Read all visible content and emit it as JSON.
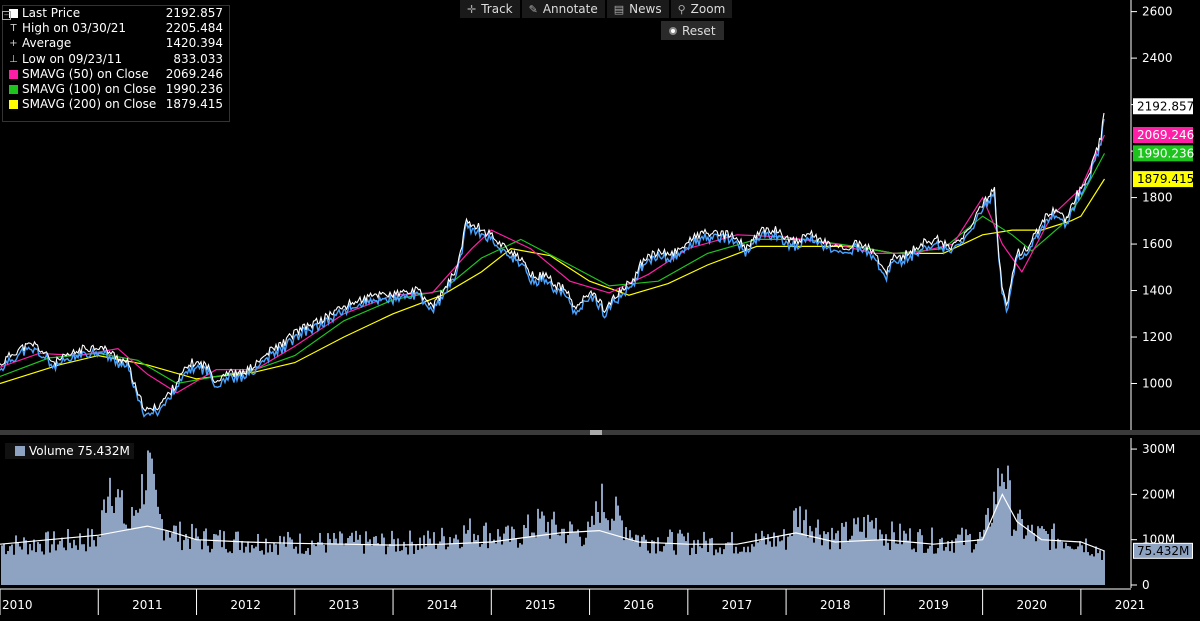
{
  "toolbar": {
    "track": "Track",
    "annotate": "Annotate",
    "news": "News",
    "zoom": "Zoom",
    "reset": "Reset"
  },
  "legend": [
    {
      "label": "Last Price",
      "value": "2192.857",
      "color": "#ffffff",
      "kind": "box"
    },
    {
      "label": "High on 03/30/21",
      "value": "2205.484",
      "color": "#bbbbbb",
      "kind": "glyph"
    },
    {
      "label": "Average",
      "value": "1420.394",
      "color": "#bbbbbb",
      "kind": "glyph"
    },
    {
      "label": "Low on 09/23/11",
      "value": "833.033",
      "color": "#bbbbbb",
      "kind": "glyph"
    },
    {
      "label": "SMAVG (50)  on Close",
      "value": "2069.246",
      "color": "#ff1fa6",
      "kind": "box"
    },
    {
      "label": "SMAVG (100)  on Close",
      "value": "1990.236",
      "color": "#1ec31e",
      "kind": "box"
    },
    {
      "label": "SMAVG (200)  on Close",
      "value": "1879.415",
      "color": "#ffff00",
      "kind": "box"
    }
  ],
  "volume_legend": {
    "label": "Volume",
    "value": "75.432M"
  },
  "colors": {
    "price": "#ffffff",
    "price_alt": "#4aa3ff",
    "sma50": "#ff1fa6",
    "sma100": "#1ec31e",
    "sma200": "#ffff00",
    "volume": "#8ea3c2",
    "volume_ma": "#ffffff",
    "axis_text": "#ffffff"
  },
  "chart_data": [
    {
      "type": "line",
      "title": "",
      "ylim": [
        800,
        2650
      ],
      "yticks": [
        "1000",
        "1200",
        "1400",
        "1600",
        "1800",
        "2000",
        "2200",
        "2400",
        "2600"
      ],
      "xlim": [
        2010.0,
        2021.5
      ],
      "series": [
        {
          "name": "Last Price",
          "x": [
            2010.0,
            2010.1,
            2010.2,
            2010.35,
            2010.45,
            2010.55,
            2010.7,
            2010.85,
            2011.0,
            2011.1,
            2011.2,
            2011.3,
            2011.4,
            2011.5,
            2011.6,
            2011.73,
            2011.85,
            2011.95,
            2012.1,
            2012.2,
            2012.3,
            2012.45,
            2012.6,
            2012.75,
            2012.9,
            2013.0,
            2013.15,
            2013.3,
            2013.4,
            2013.5,
            2013.6,
            2013.75,
            2013.9,
            2014.0,
            2014.1,
            2014.25,
            2014.4,
            2014.55,
            2014.65,
            2014.75,
            2014.85,
            2014.95,
            2015.0,
            2015.1,
            2015.2,
            2015.3,
            2015.45,
            2015.55,
            2015.65,
            2015.75,
            2015.85,
            2015.95,
            2016.05,
            2016.15,
            2016.3,
            2016.45,
            2016.55,
            2016.7,
            2016.85,
            2017.0,
            2017.15,
            2017.3,
            2017.45,
            2017.6,
            2017.75,
            2017.9,
            2018.0,
            2018.1,
            2018.25,
            2018.4,
            2018.55,
            2018.7,
            2018.8,
            2018.9,
            2019.0,
            2019.1,
            2019.25,
            2019.4,
            2019.55,
            2019.65,
            2019.8,
            2019.95,
            2020.05,
            2020.12,
            2020.17,
            2020.2,
            2020.25,
            2020.35,
            2020.45,
            2020.55,
            2020.65,
            2020.75,
            2020.85,
            2020.95,
            2021.05,
            2021.12,
            2021.2,
            2021.24
          ],
          "values": [
            1080,
            1120,
            1150,
            1170,
            1130,
            1090,
            1120,
            1150,
            1160,
            1140,
            1110,
            1090,
            950,
            880,
            900,
            960,
            1040,
            1090,
            1080,
            1010,
            1050,
            1040,
            1080,
            1140,
            1180,
            1220,
            1250,
            1280,
            1310,
            1330,
            1350,
            1370,
            1390,
            1380,
            1390,
            1400,
            1330,
            1420,
            1500,
            1700,
            1680,
            1650,
            1640,
            1600,
            1570,
            1530,
            1450,
            1480,
            1420,
            1410,
            1320,
            1370,
            1390,
            1320,
            1390,
            1450,
            1540,
            1560,
            1560,
            1610,
            1650,
            1640,
            1640,
            1580,
            1660,
            1660,
            1630,
            1610,
            1640,
            1610,
            1580,
            1600,
            1590,
            1570,
            1470,
            1540,
            1560,
            1610,
            1620,
            1590,
            1620,
            1730,
            1800,
            1850,
            1520,
            1420,
            1340,
            1560,
            1580,
            1650,
            1720,
            1760,
            1700,
            1810,
            1860,
            1950,
            2050,
            2190
          ]
        },
        {
          "name": "SMAVG (50)  on Close",
          "x": [
            2010.0,
            2010.4,
            2010.8,
            2011.2,
            2011.5,
            2011.8,
            2012.2,
            2012.6,
            2013.0,
            2013.5,
            2014.0,
            2014.4,
            2014.8,
            2015.0,
            2015.4,
            2015.8,
            2016.2,
            2016.6,
            2017.0,
            2017.5,
            2018.0,
            2018.5,
            2018.9,
            2019.3,
            2019.7,
            2020.0,
            2020.2,
            2020.4,
            2020.7,
            2021.0,
            2021.24
          ],
          "values": [
            1070,
            1130,
            1120,
            1150,
            1040,
            960,
            1060,
            1060,
            1160,
            1300,
            1380,
            1390,
            1580,
            1660,
            1580,
            1440,
            1390,
            1470,
            1580,
            1640,
            1630,
            1600,
            1560,
            1560,
            1600,
            1800,
            1600,
            1480,
            1720,
            1840,
            2069
          ]
        },
        {
          "name": "SMAVG (100)  on Close",
          "x": [
            2010.0,
            2010.5,
            2011.0,
            2011.4,
            2011.8,
            2012.2,
            2012.6,
            2013.0,
            2013.5,
            2014.0,
            2014.5,
            2014.9,
            2015.3,
            2015.8,
            2016.2,
            2016.7,
            2017.2,
            2017.7,
            2018.2,
            2018.7,
            2019.1,
            2019.6,
            2020.0,
            2020.3,
            2020.5,
            2020.8,
            2021.0,
            2021.24
          ],
          "values": [
            1030,
            1110,
            1130,
            1100,
            1000,
            1030,
            1060,
            1120,
            1270,
            1360,
            1400,
            1540,
            1620,
            1510,
            1420,
            1440,
            1560,
            1620,
            1620,
            1590,
            1560,
            1580,
            1720,
            1640,
            1570,
            1680,
            1800,
            1990
          ]
        },
        {
          "name": "SMAVG (200)  on Close",
          "x": [
            2010.0,
            2010.6,
            2011.0,
            2011.5,
            2012.0,
            2012.6,
            2013.0,
            2013.5,
            2014.0,
            2014.5,
            2014.9,
            2015.2,
            2015.6,
            2016.0,
            2016.4,
            2016.8,
            2017.2,
            2017.7,
            2018.2,
            2018.7,
            2019.1,
            2019.6,
            2020.0,
            2020.3,
            2020.6,
            2020.9,
            2021.0,
            2021.24
          ],
          "values": [
            1000,
            1080,
            1120,
            1080,
            1020,
            1050,
            1090,
            1200,
            1300,
            1380,
            1480,
            1580,
            1550,
            1440,
            1380,
            1430,
            1510,
            1590,
            1590,
            1590,
            1560,
            1560,
            1640,
            1660,
            1660,
            1700,
            1720,
            1880
          ]
        }
      ]
    },
    {
      "type": "bar",
      "title": "",
      "ylim": [
        0,
        320
      ],
      "yticks": [
        "0",
        "100M",
        "200M",
        "300M"
      ],
      "xlabels": [
        "2010",
        "2011",
        "2012",
        "2013",
        "2014",
        "2015",
        "2016",
        "2017",
        "2018",
        "2019",
        "2020",
        "2021"
      ],
      "xticks": [
        2010,
        2011,
        2012,
        2013,
        2014,
        2015,
        2016,
        2017,
        2018,
        2019,
        2020,
        2021
      ],
      "series": [
        {
          "name": "Volume",
          "x": [
            2010.0,
            2010.5,
            2011.0,
            2011.1,
            2011.3,
            2011.5,
            2011.6,
            2011.8,
            2012.0,
            2012.5,
            2013.0,
            2013.5,
            2014.0,
            2014.4,
            2014.8,
            2015.2,
            2015.5,
            2015.7,
            2016.0,
            2016.1,
            2016.5,
            2017.0,
            2017.5,
            2018.0,
            2018.1,
            2018.5,
            2018.9,
            2019.0,
            2019.5,
            2020.0,
            2020.15,
            2020.2,
            2020.3,
            2020.5,
            2021.0,
            2021.24
          ],
          "values": [
            95,
            100,
            110,
            270,
            130,
            280,
            160,
            120,
            110,
            105,
            100,
            100,
            100,
            105,
            130,
            110,
            150,
            130,
            120,
            200,
            110,
            100,
            100,
            110,
            170,
            110,
            150,
            120,
            105,
            110,
            240,
            300,
            150,
            120,
            105,
            75.432
          ]
        },
        {
          "name": "Volume MA",
          "x": [
            2010.0,
            2010.5,
            2011.0,
            2011.5,
            2011.7,
            2012.0,
            2012.5,
            2013.0,
            2013.5,
            2014.0,
            2014.5,
            2015.0,
            2015.7,
            2016.1,
            2016.5,
            2017.0,
            2017.5,
            2018.1,
            2018.5,
            2019.0,
            2019.5,
            2020.0,
            2020.2,
            2020.35,
            2020.6,
            2021.0,
            2021.24
          ],
          "values": [
            90,
            100,
            110,
            130,
            120,
            100,
            95,
            92,
            90,
            88,
            90,
            95,
            115,
            120,
            95,
            90,
            90,
            115,
            95,
            100,
            90,
            100,
            200,
            140,
            100,
            95,
            75
          ]
        }
      ]
    }
  ],
  "last_labels": [
    {
      "text": "2192.857",
      "value": 2192.857,
      "bg": "#ffffff",
      "fg": "#000000"
    },
    {
      "text": "2069.246",
      "value": 2069.246,
      "bg": "#ff1fa6",
      "fg": "#ffffff"
    },
    {
      "text": "1990.236",
      "value": 1990.236,
      "bg": "#1ec31e",
      "fg": "#ffffff"
    },
    {
      "text": "1879.415",
      "value": 1879.415,
      "bg": "#ffff00",
      "fg": "#000000"
    }
  ]
}
